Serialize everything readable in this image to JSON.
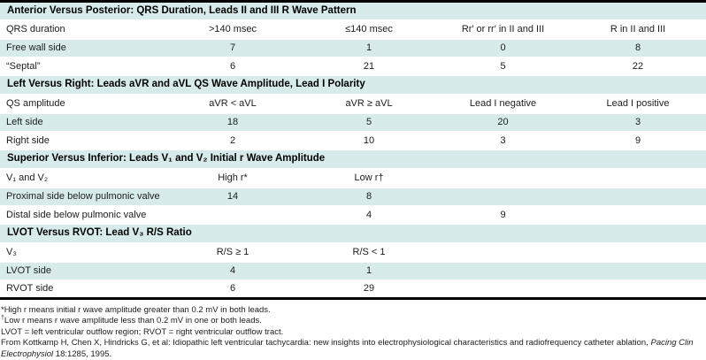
{
  "colors": {
    "row_tint": "#d7ecea",
    "rule": "#000000"
  },
  "sections": [
    {
      "title": "Anterior Versus Posterior: QRS Duration, Leads II and III R Wave Pattern",
      "columns": [
        "QRS duration",
        ">140 msec",
        "≤140 msec",
        "Rr′ or rr′ in II and III",
        "R in II and III"
      ],
      "rows": [
        {
          "label": "Free wall side",
          "values": [
            "7",
            "1",
            "0",
            "8"
          ]
        },
        {
          "label": "“Septal”",
          "values": [
            "6",
            "21",
            "5",
            "22"
          ]
        }
      ]
    },
    {
      "title": "Left Versus Right: Leads aVR and aVL QS Wave Amplitude, Lead I Polarity",
      "columns": [
        "QS amplitude",
        "aVR < aVL",
        "aVR ≥ aVL",
        "Lead I negative",
        "Lead I positive"
      ],
      "rows": [
        {
          "label": "Left side",
          "values": [
            "18",
            "5",
            "20",
            "3"
          ]
        },
        {
          "label": "Right side",
          "values": [
            "2",
            "10",
            "3",
            "9"
          ]
        }
      ]
    },
    {
      "title": "Superior Versus Inferior: Leads V₁ and V₂ Initial r Wave Amplitude",
      "columns": [
        "V₁ and V₂",
        "High r*",
        "Low r†",
        "",
        ""
      ],
      "rows": [
        {
          "label": "Proximal side below pulmonic valve",
          "values": [
            "14",
            "8",
            "",
            ""
          ]
        },
        {
          "label": "Distal side below pulmonic valve",
          "values": [
            "",
            "4",
            "9",
            ""
          ]
        }
      ]
    },
    {
      "title": "LVOT Versus RVOT: Lead V₃ R/S Ratio",
      "columns": [
        "V₃",
        "R/S ≥ 1",
        "R/S < 1",
        "",
        ""
      ],
      "rows": [
        {
          "label": "LVOT side",
          "values": [
            "4",
            "1",
            "",
            ""
          ]
        },
        {
          "label": "RVOT side",
          "values": [
            "6",
            "29",
            "",
            ""
          ]
        }
      ]
    }
  ],
  "footnotes": {
    "high_r": "*High r means initial r wave amplitude greater than 0.2 mV in both leads.",
    "low_r_marker": "†",
    "low_r": "Low r means r wave amplitude less than 0.2 mV in one or both leads.",
    "abbrev": "LVOT = left ventricular outflow region; RVOT = right ventricular outflow tract.",
    "source_prefix": "From Kottkamp H, Chen X, Hindricks G, et al: Idiopathic left ventricular tachycardia: new insights into electrophysiological characteristics and radiofrequency catheter ablation, ",
    "source_italic": "Pacing Clin Electrophysiol",
    "source_suffix": " 18:1285, 1995."
  }
}
